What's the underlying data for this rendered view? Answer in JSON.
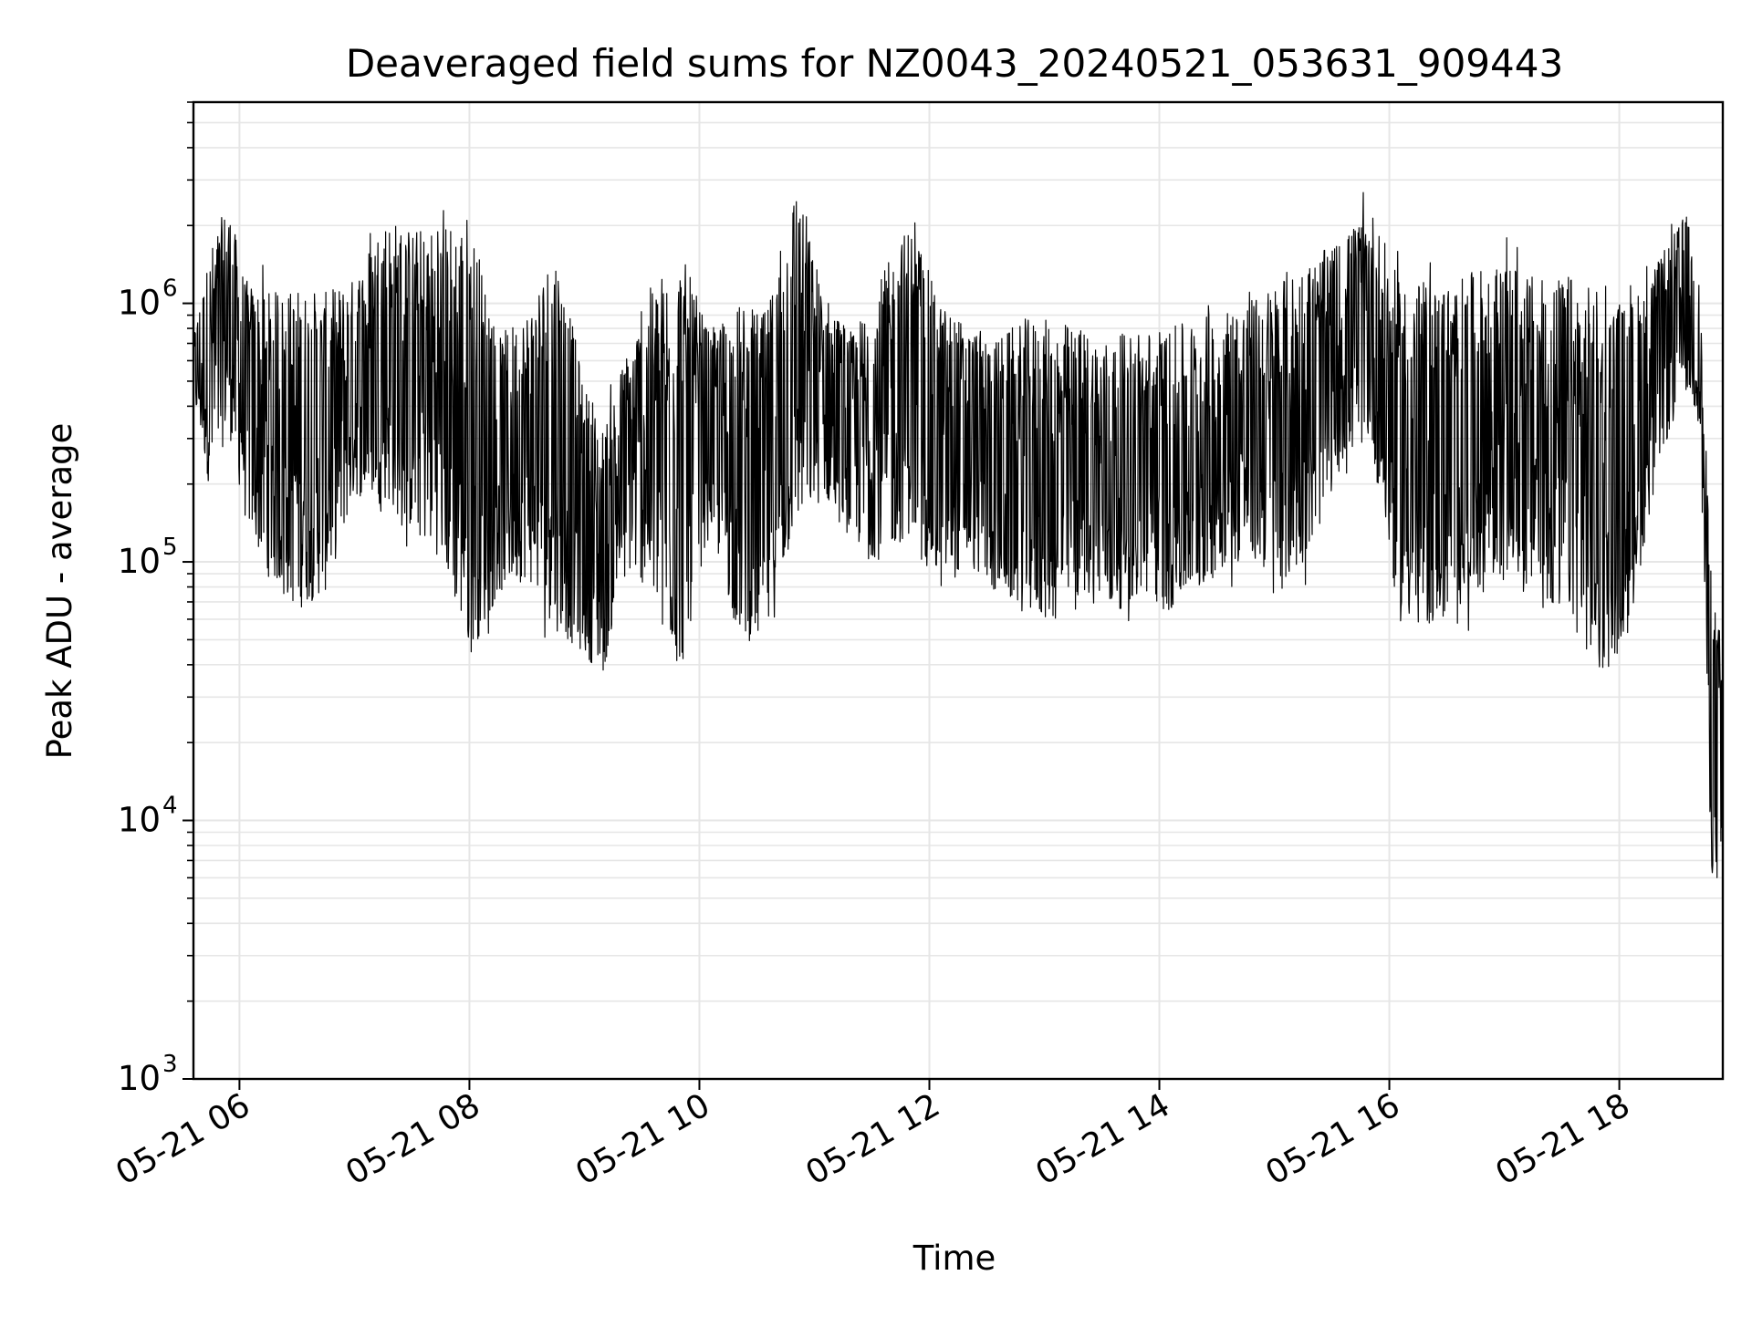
{
  "chart_data": {
    "type": "line",
    "title": "Deaveraged field sums for NZ0043_20240521_053631_909443",
    "xlabel": "Time",
    "ylabel": "Peak ADU - average",
    "yscale": "log",
    "ylim": [
      1000,
      6000000
    ],
    "xlim": [
      "2024-05-21 05:36",
      "2024-05-21 18:54"
    ],
    "grid": true,
    "line_color": "#000000",
    "grid_color": "#e6e6e6",
    "x_ticks": [
      {
        "value": "2024-05-21 06:00",
        "label": "05-21 06"
      },
      {
        "value": "2024-05-21 08:00",
        "label": "05-21 08"
      },
      {
        "value": "2024-05-21 10:00",
        "label": "05-21 10"
      },
      {
        "value": "2024-05-21 12:00",
        "label": "05-21 12"
      },
      {
        "value": "2024-05-21 14:00",
        "label": "05-21 14"
      },
      {
        "value": "2024-05-21 16:00",
        "label": "05-21 16"
      },
      {
        "value": "2024-05-21 18:00",
        "label": "05-21 18"
      }
    ],
    "y_ticks": [
      {
        "value": 1000,
        "base": "10",
        "exp": "3"
      },
      {
        "value": 10000,
        "base": "10",
        "exp": "4"
      },
      {
        "value": 100000,
        "base": "10",
        "exp": "5"
      },
      {
        "value": 1000000,
        "base": "10",
        "exp": "6"
      }
    ],
    "series": [
      {
        "x": [
          "2024-05-21 05:36",
          "2024-05-21 05:45",
          "2024-05-21 05:54",
          "2024-05-21 06:03",
          "2024-05-21 06:15",
          "2024-05-21 06:30",
          "2024-05-21 06:45",
          "2024-05-21 07:00",
          "2024-05-21 07:15",
          "2024-05-21 07:30",
          "2024-05-21 07:45",
          "2024-05-21 08:00",
          "2024-05-21 08:15",
          "2024-05-21 08:30",
          "2024-05-21 08:45",
          "2024-05-21 09:00",
          "2024-05-21 09:10",
          "2024-05-21 09:20",
          "2024-05-21 09:35",
          "2024-05-21 09:50",
          "2024-05-21 10:05",
          "2024-05-21 10:20",
          "2024-05-21 10:35",
          "2024-05-21 10:50",
          "2024-05-21 11:05",
          "2024-05-21 11:20",
          "2024-05-21 11:35",
          "2024-05-21 11:50",
          "2024-05-21 12:05",
          "2024-05-21 12:20",
          "2024-05-21 12:35",
          "2024-05-21 12:50",
          "2024-05-21 13:05",
          "2024-05-21 13:20",
          "2024-05-21 13:35",
          "2024-05-21 13:50",
          "2024-05-21 14:05",
          "2024-05-21 14:20",
          "2024-05-21 14:35",
          "2024-05-21 14:50",
          "2024-05-21 15:05",
          "2024-05-21 15:20",
          "2024-05-21 15:35",
          "2024-05-21 15:50",
          "2024-05-21 16:05",
          "2024-05-21 16:20",
          "2024-05-21 16:35",
          "2024-05-21 16:50",
          "2024-05-21 17:05",
          "2024-05-21 17:20",
          "2024-05-21 17:35",
          "2024-05-21 17:50",
          "2024-05-21 18:05",
          "2024-05-21 18:20",
          "2024-05-21 18:35",
          "2024-05-21 18:42",
          "2024-05-21 18:48",
          "2024-05-21 18:54"
        ],
        "hi": [
          800000,
          2000000,
          3000000,
          1500000,
          1400000,
          1500000,
          1400000,
          1500000,
          2800000,
          2500000,
          2600000,
          3300000,
          900000,
          1200000,
          2400000,
          600000,
          400000,
          700000,
          1500000,
          2300000,
          900000,
          1300000,
          1200000,
          3900000,
          1300000,
          900000,
          1600000,
          2700000,
          1300000,
          1000000,
          900000,
          1100000,
          1100000,
          1000000,
          900000,
          1000000,
          1000000,
          1100000,
          1200000,
          1300000,
          1700000,
          1900000,
          2100000,
          2900000,
          1600000,
          1600000,
          1600000,
          1800000,
          1800000,
          1600000,
          1700000,
          1500000,
          1300000,
          1700000,
          2600000,
          1300000,
          100000,
          60000
        ],
        "lo": [
          400000,
          150000,
          280000,
          120000,
          70000,
          50000,
          60000,
          150000,
          140000,
          100000,
          80000,
          30000,
          60000,
          70000,
          40000,
          35000,
          30000,
          80000,
          60000,
          25000,
          120000,
          40000,
          35000,
          100000,
          150000,
          100000,
          80000,
          100000,
          60000,
          80000,
          60000,
          50000,
          45000,
          60000,
          50000,
          60000,
          50000,
          60000,
          80000,
          80000,
          60000,
          90000,
          200000,
          250000,
          45000,
          42000,
          50000,
          60000,
          70000,
          50000,
          45000,
          25000,
          40000,
          200000,
          400000,
          300000,
          5000,
          4000
        ]
      }
    ]
  }
}
